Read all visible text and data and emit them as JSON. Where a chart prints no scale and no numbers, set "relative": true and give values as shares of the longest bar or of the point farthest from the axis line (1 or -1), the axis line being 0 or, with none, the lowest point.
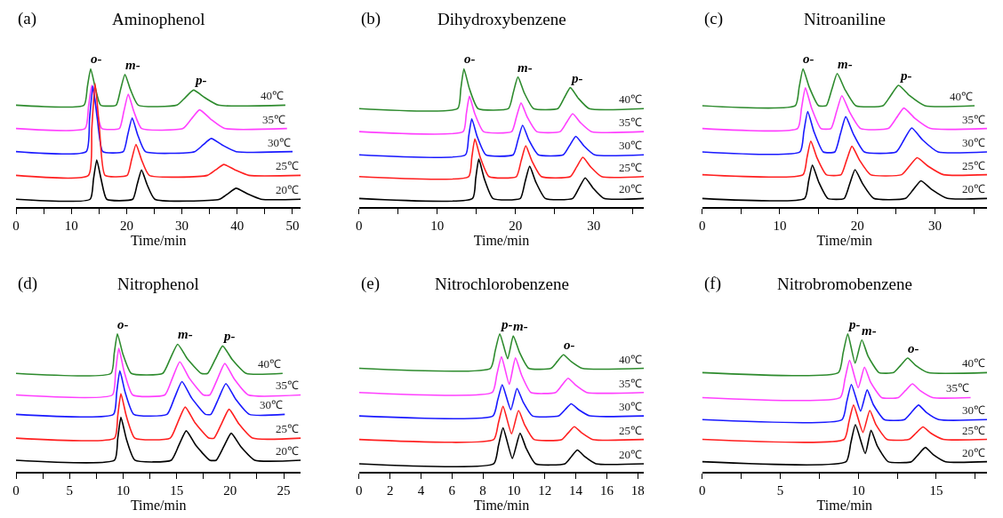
{
  "chart_data": [
    {
      "type": "line",
      "relative": true,
      "title": "Aminophenol",
      "xlabel": "Time/min",
      "marker": "none",
      "line_style": "solid",
      "xlim": [
        0,
        51.5
      ],
      "xticks": [
        0,
        {
          "value": 5,
          "label": null
        },
        10,
        {
          "value": 15,
          "label": null
        },
        20,
        {
          "value": 25,
          "label": null
        },
        30,
        {
          "value": 35,
          "label": null
        },
        40,
        {
          "value": 45,
          "label": null
        },
        50
      ],
      "annotations": [
        "(a)",
        {
          "text": "o-",
          "x": 13.5,
          "y": 1.0
        },
        {
          "text": "m-",
          "x": 19.7,
          "y": 0.96
        },
        {
          "text": "p-",
          "x": 32.1,
          "y": 0.846
        }
      ],
      "series": [
        {
          "name": "40℃",
          "color": "#2e8b2e",
          "x": [
            0,
            12.3,
            12.9,
            13.5,
            14.3,
            15.3,
            18.1,
            18.9,
            19.7,
            20.7,
            22.1,
            29.1,
            30.6,
            32.1,
            34.1,
            36.6,
            48.7
          ],
          "values": [
            0.737,
            0.737,
            0.869,
            1,
            0.869,
            0.737,
            0.737,
            0.849,
            0.96,
            0.849,
            0.737,
            0.737,
            0.792,
            0.846,
            0.792,
            0.737,
            0.737
          ]
        },
        {
          "name": "35℃",
          "color": "#ff40ff",
          "x": [
            0,
            12.5,
            13.1,
            13.7,
            14.5,
            15.5,
            18.7,
            19.5,
            20.3,
            21.3,
            22.7,
            30.2,
            31.7,
            33.2,
            35.2,
            37.7,
            49
          ],
          "values": [
            0.568,
            0.568,
            0.724,
            0.88,
            0.724,
            0.568,
            0.568,
            0.692,
            0.816,
            0.692,
            0.568,
            0.568,
            0.636,
            0.703,
            0.636,
            0.568,
            0.568
          ]
        },
        {
          "name": "30℃",
          "color": "#1a1aff",
          "x": [
            0,
            12.7,
            13.3,
            13.9,
            14.7,
            15.7,
            19.4,
            20.2,
            21.0,
            22.0,
            23.4,
            32.3,
            33.8,
            35.3,
            37.3,
            39.8,
            50
          ],
          "values": [
            0.4,
            0.4,
            0.638,
            0.875,
            0.638,
            0.4,
            0.4,
            0.522,
            0.644,
            0.522,
            0.4,
            0.4,
            0.448,
            0.495,
            0.448,
            0.4,
            0.4
          ]
        },
        {
          "name": "25℃",
          "color": "#ff2020",
          "x": [
            0,
            13.1,
            13.7,
            14.3,
            15.1,
            16.1,
            20.1,
            20.9,
            21.7,
            22.7,
            24.1,
            34.6,
            36.1,
            37.6,
            39.6,
            42.1,
            51.5
          ],
          "values": [
            0.228,
            0.228,
            0.562,
            0.895,
            0.562,
            0.228,
            0.228,
            0.341,
            0.453,
            0.341,
            0.228,
            0.228,
            0.268,
            0.307,
            0.268,
            0.228,
            0.228
          ]
        },
        {
          "name": "20℃",
          "color": "#000000",
          "x": [
            0,
            13.4,
            14.0,
            14.6,
            15.4,
            16.4,
            21.1,
            21.9,
            22.7,
            23.7,
            25.1,
            36.8,
            38.3,
            39.8,
            41.8,
            44.3,
            51.5
          ],
          "values": [
            0.055,
            0.055,
            0.198,
            0.34,
            0.198,
            0.055,
            0.055,
            0.161,
            0.267,
            0.161,
            0.055,
            0.055,
            0.095,
            0.135,
            0.095,
            0.055,
            0.055
          ]
        }
      ]
    },
    {
      "type": "line",
      "relative": true,
      "title": "Dihydroxybenzene",
      "xlabel": "Time/min",
      "marker": "none",
      "line_style": "solid",
      "xlim": [
        0,
        36.4
      ],
      "xticks": [
        0,
        {
          "value": 5,
          "label": null
        },
        10,
        {
          "value": 15,
          "label": null
        },
        20,
        {
          "value": 25,
          "label": null
        },
        30,
        {
          "value": 35,
          "label": null
        }
      ],
      "annotations": [
        "(b)",
        {
          "text": "o-",
          "x": 13.4,
          "y": 1
        },
        {
          "text": "m-",
          "x": 20.3,
          "y": 0.941
        },
        {
          "text": "p-",
          "x": 27.0,
          "y": 0.864
        }
      ],
      "series": [
        {
          "name": "40℃",
          "color": "#2e8b2e",
          "x": [
            0,
            12.6,
            13.0,
            13.4,
            14.1,
            15.2,
            19.1,
            19.7,
            20.3,
            21.1,
            22.3,
            25.4,
            26.2,
            27.0,
            28.0,
            29.4,
            36.4
          ],
          "values": [
            0.712,
            0.712,
            0.856,
            1,
            0.856,
            0.712,
            0.712,
            0.827,
            0.941,
            0.827,
            0.712,
            0.712,
            0.788,
            0.864,
            0.788,
            0.712,
            0.712
          ]
        },
        {
          "name": "35℃",
          "color": "#ff40ff",
          "x": [
            0,
            13.3,
            13.7,
            14.1,
            14.8,
            15.9,
            19.5,
            20.1,
            20.7,
            21.5,
            22.7,
            25.7,
            26.5,
            27.3,
            28.3,
            29.7,
            36.4
          ],
          "values": [
            0.545,
            0.545,
            0.673,
            0.801,
            0.673,
            0.545,
            0.545,
            0.649,
            0.753,
            0.649,
            0.545,
            0.545,
            0.61,
            0.675,
            0.61,
            0.545,
            0.545
          ]
        },
        {
          "name": "30℃",
          "color": "#1a1aff",
          "x": [
            0,
            13.6,
            14.0,
            14.4,
            15.1,
            16.2,
            19.7,
            20.3,
            20.9,
            21.7,
            22.9,
            26.1,
            26.9,
            27.7,
            28.7,
            30.1,
            36.4
          ],
          "values": [
            0.377,
            0.377,
            0.508,
            0.638,
            0.508,
            0.377,
            0.377,
            0.484,
            0.591,
            0.484,
            0.377,
            0.377,
            0.444,
            0.511,
            0.444,
            0.377,
            0.377
          ]
        },
        {
          "name": "25℃",
          "color": "#ff2020",
          "x": [
            0,
            14.0,
            14.4,
            14.8,
            15.5,
            16.6,
            20.1,
            20.7,
            21.3,
            22.1,
            23.3,
            27.0,
            27.8,
            28.6,
            29.6,
            31.0,
            36.4
          ],
          "values": [
            0.219,
            0.219,
            0.356,
            0.493,
            0.356,
            0.219,
            0.219,
            0.331,
            0.442,
            0.331,
            0.219,
            0.219,
            0.289,
            0.359,
            0.289,
            0.219,
            0.219
          ]
        },
        {
          "name": "20℃",
          "color": "#000000",
          "x": [
            0,
            14.5,
            14.9,
            15.3,
            16.0,
            17.1,
            20.6,
            21.2,
            21.8,
            22.6,
            23.8,
            27.3,
            28.1,
            28.9,
            29.9,
            31.3,
            36.4
          ],
          "values": [
            0.061,
            0.061,
            0.204,
            0.346,
            0.204,
            0.061,
            0.061,
            0.178,
            0.294,
            0.178,
            0.061,
            0.061,
            0.136,
            0.21,
            0.136,
            0.061,
            0.061
          ]
        }
      ]
    },
    {
      "type": "line",
      "relative": true,
      "title": "Nitroaniline",
      "xlabel": "Time/min",
      "marker": "none",
      "line_style": "solid",
      "xlim": [
        0,
        36.7
      ],
      "xticks": [
        0,
        {
          "value": 5,
          "label": null
        },
        10,
        {
          "value": 15,
          "label": null
        },
        20,
        {
          "value": 25,
          "label": null
        },
        30,
        {
          "value": 35,
          "label": null
        }
      ],
      "annotations": [
        "(c)",
        {
          "text": "o-",
          "x": 13.0,
          "y": 1
        },
        {
          "text": "m-",
          "x": 17.4,
          "y": 0.966
        },
        {
          "text": "p-",
          "x": 25.3,
          "y": 0.881
        }
      ],
      "series": [
        {
          "name": "40℃",
          "color": "#2e8b2e",
          "x": [
            0,
            12.0,
            12.5,
            13.0,
            13.8,
            15.0,
            16.0,
            16.7,
            17.4,
            18.4,
            19.8,
            23.3,
            24.3,
            25.3,
            26.7,
            28.7,
            35.1
          ],
          "values": [
            0.733,
            0.733,
            0.867,
            1,
            0.867,
            0.733,
            0.733,
            0.85,
            0.966,
            0.85,
            0.733,
            0.733,
            0.807,
            0.881,
            0.807,
            0.733,
            0.733
          ]
        },
        {
          "name": "35℃",
          "color": "#ff40ff",
          "x": [
            0,
            12.3,
            12.8,
            13.3,
            14.1,
            15.3,
            16.6,
            17.3,
            18.0,
            19.0,
            20.4,
            24.0,
            25.0,
            26.0,
            27.4,
            29.4,
            36.7
          ],
          "values": [
            0.568,
            0.568,
            0.715,
            0.862,
            0.715,
            0.568,
            0.568,
            0.687,
            0.805,
            0.687,
            0.568,
            0.568,
            0.642,
            0.716,
            0.642,
            0.568,
            0.568
          ]
        },
        {
          "name": "30℃",
          "color": "#1a1aff",
          "x": [
            0,
            12.6,
            13.1,
            13.6,
            14.4,
            15.6,
            17.1,
            17.8,
            18.5,
            19.5,
            20.9,
            25.0,
            26.0,
            27.0,
            28.4,
            30.4,
            36.7
          ],
          "values": [
            0.398,
            0.398,
            0.545,
            0.691,
            0.545,
            0.398,
            0.398,
            0.526,
            0.653,
            0.526,
            0.398,
            0.398,
            0.485,
            0.572,
            0.485,
            0.398,
            0.398
          ]
        },
        {
          "name": "25℃",
          "color": "#ff2020",
          "x": [
            0,
            13.0,
            13.5,
            14.0,
            14.8,
            16.0,
            17.9,
            18.6,
            19.3,
            20.3,
            21.7,
            25.7,
            26.7,
            27.7,
            29.1,
            31.1,
            36.7
          ],
          "values": [
            0.233,
            0.233,
            0.355,
            0.477,
            0.355,
            0.233,
            0.233,
            0.336,
            0.439,
            0.336,
            0.233,
            0.233,
            0.295,
            0.356,
            0.295,
            0.233,
            0.233
          ]
        },
        {
          "name": "20℃",
          "color": "#000000",
          "x": [
            0,
            13.2,
            13.7,
            14.2,
            15.0,
            16.2,
            18.3,
            19.0,
            19.7,
            20.7,
            22.1,
            26.2,
            27.2,
            28.2,
            29.6,
            31.6,
            36.7
          ],
          "values": [
            0.061,
            0.061,
            0.182,
            0.303,
            0.182,
            0.061,
            0.061,
            0.165,
            0.269,
            0.165,
            0.061,
            0.061,
            0.125,
            0.189,
            0.125,
            0.061,
            0.061
          ]
        }
      ]
    },
    {
      "type": "line",
      "relative": true,
      "title": "Nitrophenol",
      "xlabel": "Time/min",
      "marker": "none",
      "line_style": "solid",
      "xlim": [
        0,
        26.6
      ],
      "xticks": [
        0,
        {
          "value": 2.5,
          "label": null
        },
        5,
        {
          "value": 7.5,
          "label": null
        },
        10,
        {
          "value": 12.5,
          "label": null
        },
        15,
        {
          "value": 17.5,
          "label": null
        },
        20,
        {
          "value": 22.5,
          "label": null
        },
        25
      ],
      "annotations": [
        "(d)",
        {
          "text": "o-",
          "x": 9.47,
          "y": 1
        },
        {
          "text": "m-",
          "x": 15.1,
          "y": 0.924
        },
        {
          "text": "p-",
          "x": 19.3,
          "y": 0.912
        }
      ],
      "series": [
        {
          "name": "40℃",
          "color": "#2e8b2e",
          "x": [
            0,
            8.87,
            9.17,
            9.47,
            9.97,
            10.77,
            13.7,
            14.4,
            15.1,
            16.0,
            17.3,
            17.9,
            18.6,
            19.3,
            20.2,
            21.5,
            24.9
          ],
          "values": [
            0.713,
            0.713,
            0.857,
            1,
            0.857,
            0.713,
            0.713,
            0.819,
            0.924,
            0.819,
            0.713,
            0.713,
            0.813,
            0.912,
            0.813,
            0.713,
            0.713
          ]
        },
        {
          "name": "35℃",
          "color": "#ff40ff",
          "x": [
            0,
            9.0,
            9.3,
            9.6,
            10.1,
            10.9,
            13.9,
            14.6,
            15.3,
            16.2,
            17.5,
            18.1,
            18.8,
            19.5,
            20.4,
            21.7,
            26.6
          ],
          "values": [
            0.557,
            0.557,
            0.726,
            0.895,
            0.726,
            0.557,
            0.557,
            0.677,
            0.797,
            0.677,
            0.557,
            0.557,
            0.671,
            0.785,
            0.671,
            0.557,
            0.557
          ]
        },
        {
          "name": "30℃",
          "color": "#1a1aff",
          "x": [
            0,
            9.1,
            9.4,
            9.7,
            10.2,
            11.0,
            14.1,
            14.8,
            15.5,
            16.4,
            17.7,
            18.2,
            18.9,
            19.6,
            20.5,
            21.8,
            25.1
          ],
          "values": [
            0.416,
            0.416,
            0.574,
            0.732,
            0.574,
            0.416,
            0.416,
            0.535,
            0.654,
            0.535,
            0.416,
            0.416,
            0.528,
            0.639,
            0.528,
            0.416,
            0.416
          ]
        },
        {
          "name": "25℃",
          "color": "#ff2020",
          "x": [
            0,
            9.2,
            9.5,
            9.8,
            10.3,
            11.1,
            14.4,
            15.1,
            15.8,
            16.7,
            18.0,
            18.5,
            19.2,
            19.9,
            20.8,
            22.1,
            26.6
          ],
          "values": [
            0.244,
            0.244,
            0.405,
            0.566,
            0.405,
            0.244,
            0.244,
            0.357,
            0.469,
            0.357,
            0.244,
            0.244,
            0.349,
            0.453,
            0.349,
            0.244,
            0.244
          ]
        },
        {
          "name": "20℃",
          "color": "#000000",
          "x": [
            0,
            9.2,
            9.5,
            9.8,
            10.3,
            11.1,
            14.5,
            15.2,
            15.9,
            16.8,
            18.1,
            18.7,
            19.4,
            20.1,
            21.0,
            22.3,
            26.6
          ],
          "values": [
            0.084,
            0.084,
            0.24,
            0.395,
            0.24,
            0.084,
            0.084,
            0.191,
            0.297,
            0.191,
            0.084,
            0.084,
            0.182,
            0.279,
            0.182,
            0.084,
            0.084
          ]
        }
      ]
    },
    {
      "type": "line",
      "relative": true,
      "title": "Nitrochlorobenzene",
      "xlabel": "Time/min",
      "marker": "none",
      "line_style": "solid",
      "xlim": [
        0,
        18.4
      ],
      "xticks": [
        0,
        2,
        4,
        6,
        8,
        10,
        12,
        14,
        16,
        18
      ],
      "annotations": [
        "(e)",
        {
          "text": "p-",
          "x": 9.09,
          "y": 1
        },
        {
          "text": "m-",
          "x": 9.96,
          "y": 0.984
        },
        {
          "text": "o-",
          "x": 13.2,
          "y": 0.848
        }
      ],
      "series": [
        {
          "name": "40℃",
          "color": "#2e8b2e",
          "x": [
            0,
            8.49,
            8.79,
            9.09,
            9.6,
            9.96,
            10.36,
            10.96,
            12.4,
            12.8,
            13.2,
            13.7,
            14.4,
            18.4
          ],
          "values": [
            0.75,
            0.75,
            0.875,
            1,
            0.819,
            0.984,
            0.867,
            0.75,
            0.75,
            0.799,
            0.848,
            0.799,
            0.75,
            0.75
          ]
        },
        {
          "name": "35℃",
          "color": "#ff40ff",
          "x": [
            0,
            8.6,
            8.9,
            9.2,
            9.7,
            10.1,
            10.5,
            11.1,
            12.7,
            13.1,
            13.5,
            14.0,
            14.7,
            18.4
          ],
          "values": [
            0.575,
            0.575,
            0.705,
            0.834,
            0.634,
            0.825,
            0.7,
            0.575,
            0.575,
            0.627,
            0.678,
            0.627,
            0.575,
            0.575
          ]
        },
        {
          "name": "30℃",
          "color": "#1a1aff",
          "x": [
            0,
            8.65,
            8.95,
            9.25,
            9.8,
            10.2,
            10.6,
            11.2,
            12.9,
            13.3,
            13.7,
            14.2,
            14.9,
            18.4
          ],
          "values": [
            0.405,
            0.405,
            0.518,
            0.63,
            0.45,
            0.604,
            0.505,
            0.405,
            0.405,
            0.449,
            0.493,
            0.449,
            0.405,
            0.405
          ]
        },
        {
          "name": "25℃",
          "color": "#ff2020",
          "x": [
            0,
            8.7,
            9.0,
            9.3,
            9.85,
            10.3,
            10.7,
            11.3,
            13.1,
            13.5,
            13.9,
            14.4,
            15.1,
            18.4
          ],
          "values": [
            0.234,
            0.234,
            0.354,
            0.474,
            0.275,
            0.444,
            0.339,
            0.234,
            0.234,
            0.281,
            0.327,
            0.281,
            0.234,
            0.234
          ]
        },
        {
          "name": "20℃",
          "color": "#000000",
          "x": [
            0,
            8.7,
            9.0,
            9.3,
            9.9,
            10.4,
            10.8,
            11.4,
            13.3,
            13.7,
            14.1,
            14.6,
            15.3,
            18.4
          ],
          "values": [
            0.058,
            0.058,
            0.188,
            0.318,
            0.097,
            0.279,
            0.169,
            0.058,
            0.058,
            0.108,
            0.158,
            0.108,
            0.058,
            0.058
          ]
        }
      ]
    },
    {
      "type": "line",
      "relative": true,
      "title": "Nitrobromobenzene",
      "xlabel": "Time/min",
      "marker": "none",
      "line_style": "solid",
      "xlim": [
        0,
        18.25
      ],
      "xticks": [
        0,
        {
          "value": 2.5,
          "label": null
        },
        5,
        {
          "value": 7.5,
          "label": null
        },
        10,
        {
          "value": 12.5,
          "label": null
        },
        15,
        {
          "value": 17.5,
          "label": null
        }
      ],
      "annotations": [
        "(f)",
        {
          "text": "p-",
          "x": 9.33,
          "y": 1
        },
        {
          "text": "m-",
          "x": 10.23,
          "y": 0.956
        },
        {
          "text": "o-",
          "x": 13.17,
          "y": 0.824
        }
      ],
      "series": [
        {
          "name": "40℃",
          "color": "#2e8b2e",
          "x": [
            0,
            8.73,
            9.03,
            9.33,
            9.8,
            10.23,
            10.63,
            11.33,
            12.27,
            12.72,
            13.17,
            13.67,
            14.47,
            18.25
          ],
          "values": [
            0.719,
            0.719,
            0.86,
            1,
            0.787,
            0.956,
            0.838,
            0.719,
            0.719,
            0.772,
            0.824,
            0.772,
            0.719,
            0.719
          ]
        },
        {
          "name": "35℃",
          "color": "#ff40ff",
          "x": [
            0,
            8.85,
            9.15,
            9.45,
            10.0,
            10.4,
            10.8,
            11.5,
            12.57,
            13.02,
            13.47,
            13.97,
            14.77,
            17.2
          ],
          "values": [
            0.538,
            0.538,
            0.673,
            0.807,
            0.609,
            0.758,
            0.648,
            0.538,
            0.538,
            0.588,
            0.637,
            0.588,
            0.538,
            0.538
          ]
        },
        {
          "name": "30℃",
          "color": "#1a1aff",
          "x": [
            0,
            8.96,
            9.26,
            9.56,
            10.15,
            10.57,
            10.97,
            11.67,
            12.96,
            13.41,
            13.86,
            14.36,
            15.16,
            18.25
          ],
          "values": [
            0.378,
            0.378,
            0.506,
            0.633,
            0.44,
            0.593,
            0.486,
            0.378,
            0.378,
            0.431,
            0.484,
            0.431,
            0.378,
            0.378
          ]
        },
        {
          "name": "25℃",
          "color": "#ff2020",
          "x": [
            0,
            9.1,
            9.4,
            9.7,
            10.3,
            10.74,
            11.14,
            11.84,
            13.25,
            13.7,
            14.15,
            14.65,
            15.45,
            18.25
          ],
          "values": [
            0.235,
            0.235,
            0.36,
            0.484,
            0.286,
            0.444,
            0.34,
            0.235,
            0.235,
            0.28,
            0.325,
            0.28,
            0.235,
            0.235
          ]
        },
        {
          "name": "20℃",
          "color": "#000000",
          "x": [
            0,
            9.22,
            9.52,
            9.82,
            10.45,
            10.82,
            11.22,
            11.92,
            13.4,
            13.85,
            14.3,
            14.8,
            15.6,
            18.25
          ],
          "values": [
            0.073,
            0.073,
            0.207,
            0.341,
            0.132,
            0.301,
            0.187,
            0.073,
            0.073,
            0.125,
            0.176,
            0.125,
            0.073,
            0.073
          ]
        }
      ]
    }
  ]
}
